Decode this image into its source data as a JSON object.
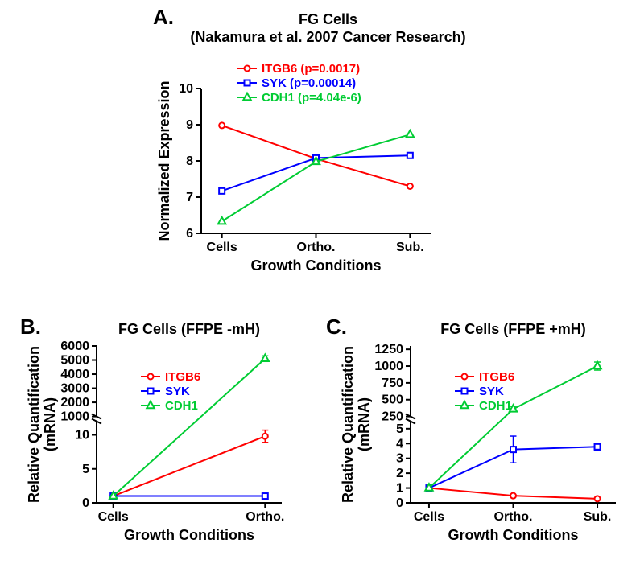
{
  "panelA": {
    "panel_label": "A.",
    "title_line1": "FG Cells",
    "title_line2": "(Nakamura et al. 2007 Cancer Research)",
    "x_label": "Growth Conditions",
    "y_label": "Normalized Expression",
    "x_categories": [
      "Cells",
      "Ortho.",
      "Sub."
    ],
    "y_min": 6,
    "y_max": 10,
    "y_tick_step": 1,
    "gridline_color": "#e0e0e0",
    "axis_color": "#000000",
    "background": "#ffffff",
    "series": {
      "ITGB6": {
        "values": [
          8.98,
          8.06,
          7.3
        ],
        "color": "#ff0000",
        "marker": "circle",
        "line_width": 2,
        "marker_size": 7,
        "legend": "ITGB6 (p=0.0017)"
      },
      "SYK": {
        "values": [
          7.17,
          8.08,
          8.15
        ],
        "color": "#0000ff",
        "marker": "square",
        "line_width": 2,
        "marker_size": 7,
        "legend": "SYK (p=0.00014)"
      },
      "CDH1": {
        "values": [
          6.33,
          7.98,
          8.73
        ],
        "color": "#00cc33",
        "marker": "triangle",
        "line_width": 2,
        "marker_size": 8,
        "legend": "CDH1 (p=4.04e-6)"
      }
    }
  },
  "panelB": {
    "panel_label": "B.",
    "title": "FG Cells (FFPE -mH)",
    "x_label": "Growth Conditions",
    "y_label": "Relative Quantification\n(mRNA)",
    "x_categories": [
      "Cells",
      "Ortho."
    ],
    "y_segments": [
      {
        "min": 0,
        "max": 12,
        "tick_step": 5,
        "ticks": [
          0,
          5,
          10
        ]
      },
      {
        "min": 1000,
        "max": 6000,
        "tick_step": 1000,
        "ticks": [
          1000,
          2000,
          3000,
          4000,
          5000,
          6000
        ]
      }
    ],
    "axis_color": "#000000",
    "background": "#ffffff",
    "series": {
      "ITGB6": {
        "values": [
          1,
          9.8
        ],
        "err": [
          0,
          0.9
        ],
        "color": "#ff0000",
        "marker": "circle",
        "line_width": 2,
        "marker_size": 7,
        "legend": "ITGB6"
      },
      "SYK": {
        "values": [
          1,
          1.0
        ],
        "err": [
          0,
          0
        ],
        "color": "#0000ff",
        "marker": "square",
        "line_width": 2,
        "marker_size": 7,
        "legend": "SYK"
      },
      "CDH1": {
        "values": [
          1,
          5100
        ],
        "err": [
          0,
          200
        ],
        "color": "#00cc33",
        "marker": "triangle",
        "line_width": 2,
        "marker_size": 8,
        "legend": "CDH1"
      }
    }
  },
  "panelC": {
    "panel_label": "C.",
    "title": "FG Cells (FFPE +mH)",
    "x_label": "Growth Conditions",
    "y_label": "Relative Quantification\n(mRNA)",
    "x_categories": [
      "Cells",
      "Ortho.",
      "Sub."
    ],
    "y_segments": [
      {
        "min": 0,
        "max": 5.5,
        "tick_step": 1,
        "ticks": [
          0,
          1,
          2,
          3,
          4,
          5
        ]
      },
      {
        "min": 250,
        "max": 1300,
        "tick_step": 250,
        "ticks": [
          250,
          500,
          750,
          1000,
          1250
        ]
      }
    ],
    "axis_color": "#000000",
    "background": "#ffffff",
    "series": {
      "ITGB6": {
        "values": [
          1,
          0.48,
          0.28
        ],
        "err": [
          0,
          0.08,
          0.05
        ],
        "color": "#ff0000",
        "marker": "circle",
        "line_width": 2,
        "marker_size": 7,
        "legend": "ITGB6"
      },
      "SYK": {
        "values": [
          1,
          3.6,
          3.78
        ],
        "err": [
          0,
          0.9,
          0.22
        ],
        "color": "#0000ff",
        "marker": "square",
        "line_width": 2,
        "marker_size": 7,
        "legend": "SYK"
      },
      "CDH1": {
        "values": [
          1,
          360,
          1000
        ],
        "err": [
          0,
          40,
          60
        ],
        "color": "#00cc33",
        "marker": "triangle",
        "line_width": 2,
        "marker_size": 8,
        "legend": "CDH1"
      }
    }
  }
}
